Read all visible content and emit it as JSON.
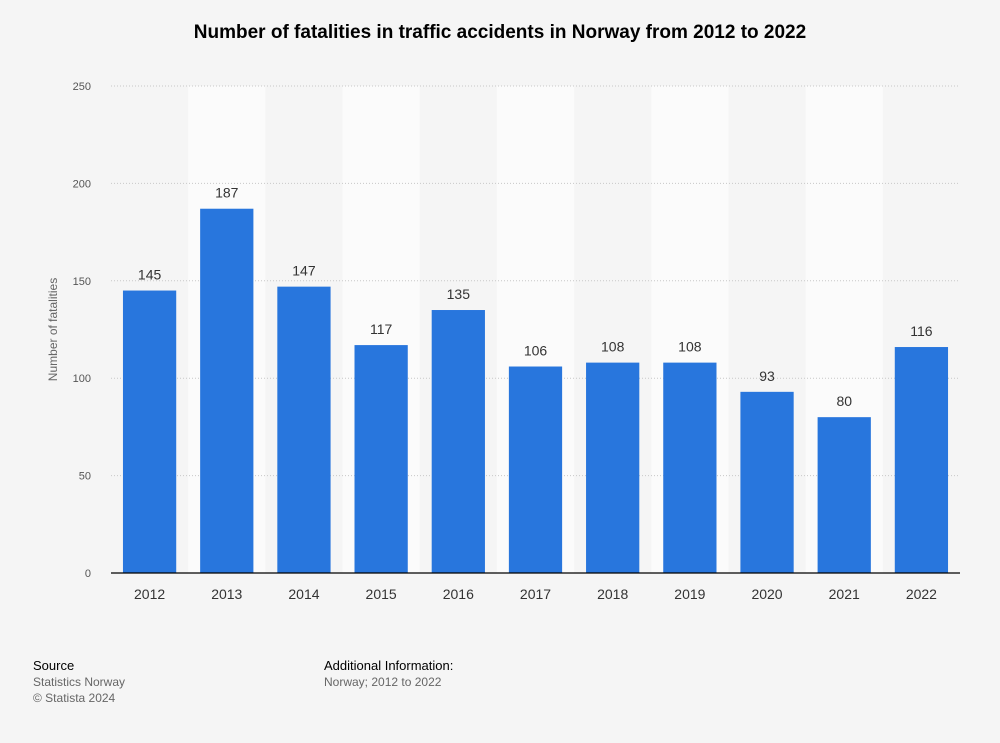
{
  "chart_data": {
    "type": "bar",
    "title": "Number of fatalities in traffic accidents in Norway from 2012 to 2022",
    "xlabel": "",
    "ylabel": "Number of fatalities",
    "categories": [
      "2012",
      "2013",
      "2014",
      "2015",
      "2016",
      "2017",
      "2018",
      "2019",
      "2020",
      "2021",
      "2022"
    ],
    "values": [
      145,
      187,
      147,
      117,
      135,
      106,
      108,
      108,
      93,
      80,
      116
    ],
    "value_labels": [
      "145",
      "187",
      "147",
      "117",
      "135",
      "106",
      "108",
      "108",
      "93",
      "80",
      "116"
    ],
    "ylim": [
      0,
      250
    ],
    "yticks": [
      "0",
      "50",
      "100",
      "150",
      "200",
      "250"
    ],
    "ytick_values": [
      0,
      50,
      100,
      150,
      200,
      250
    ],
    "grid": true,
    "bar_color": "#2876dd"
  },
  "footer": {
    "source_heading": "Source",
    "source_name": "Statistics Norway",
    "copyright": "© Statista 2024",
    "info_heading": "Additional Information:",
    "info_text": "Norway; 2012 to 2022"
  }
}
